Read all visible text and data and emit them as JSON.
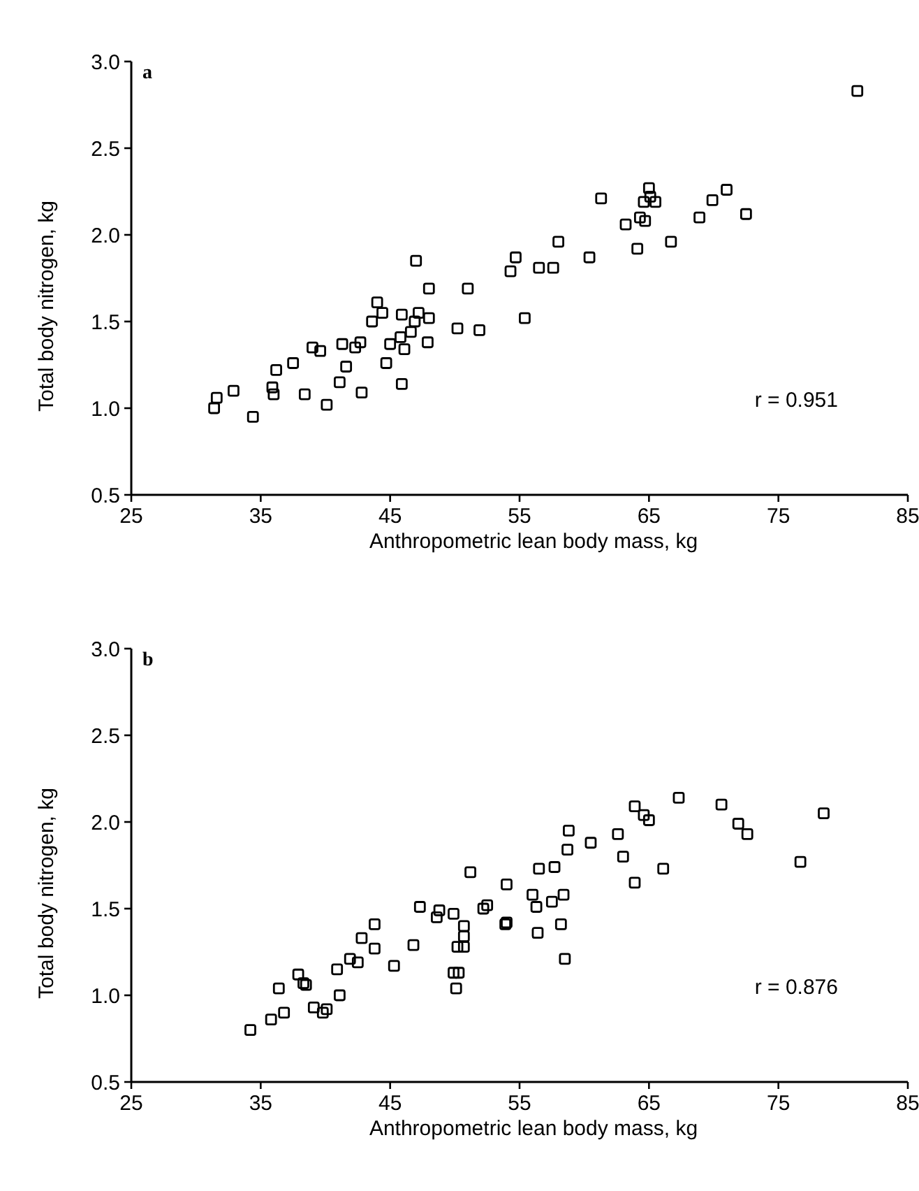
{
  "chart_data": [
    {
      "type": "scatter",
      "title": "a",
      "xlabel": "Anthropometric lean body mass, kg",
      "ylabel": "Total body nitrogen, kg",
      "xlim": [
        25,
        85
      ],
      "xticks": [
        25,
        35,
        45,
        55,
        65,
        75,
        85
      ],
      "ylim": [
        0.5,
        3.0
      ],
      "yticks": [
        {
          "value": 0.5,
          "label": "0.5"
        },
        {
          "value": 1,
          "label": "1.0"
        },
        {
          "value": 1.5,
          "label": "1.5"
        },
        {
          "value": 2,
          "label": "2.0"
        },
        {
          "value": 2.5,
          "label": "2.5"
        },
        {
          "value": 3,
          "label": "3.0"
        }
      ],
      "marker": "square",
      "grid": false,
      "annotations": [
        "r = 0.951"
      ],
      "series": [
        {
          "color": "#000000",
          "x": [
            31.4,
            31.6,
            32.9,
            34.4,
            35.9,
            36.0,
            36.2,
            37.5,
            38.4,
            39.0,
            39.6,
            40.1,
            41.1,
            41.3,
            41.6,
            42.3,
            42.7,
            42.8,
            43.6,
            44.0,
            44.4,
            44.7,
            45.0,
            45.9,
            45.9,
            45.8,
            46.1,
            46.6,
            46.9,
            47.2,
            47.9,
            48.0,
            48.0,
            50.2,
            51.0,
            51.9,
            55.4,
            47.0,
            54.3,
            54.7,
            56.5,
            57.6,
            58.0,
            60.4,
            61.3,
            63.2,
            64.1,
            64.3,
            64.7,
            64.6,
            65.0,
            65.1,
            65.5,
            66.7,
            68.9,
            69.9,
            71.0,
            72.5,
            81.1
          ],
          "values": [
            1.0,
            1.06,
            1.1,
            0.95,
            1.12,
            1.08,
            1.22,
            1.26,
            1.08,
            1.35,
            1.33,
            1.02,
            1.15,
            1.37,
            1.24,
            1.35,
            1.38,
            1.09,
            1.5,
            1.61,
            1.55,
            1.26,
            1.37,
            1.54,
            1.14,
            1.41,
            1.34,
            1.44,
            1.5,
            1.55,
            1.38,
            1.52,
            1.69,
            1.46,
            1.69,
            1.45,
            1.52,
            1.85,
            1.79,
            1.87,
            1.81,
            1.81,
            1.96,
            1.87,
            2.21,
            2.06,
            1.92,
            2.1,
            2.08,
            2.19,
            2.27,
            2.22,
            2.19,
            1.96,
            2.1,
            2.2,
            2.26,
            2.12,
            2.83
          ]
        }
      ]
    },
    {
      "type": "scatter",
      "title": "b",
      "xlabel": "Anthropometric lean body mass, kg",
      "ylabel": "Total body nitrogen, kg",
      "xlim": [
        25,
        85
      ],
      "xticks": [
        25,
        35,
        45,
        55,
        65,
        75,
        85
      ],
      "ylim": [
        0.5,
        3.0
      ],
      "yticks": [
        {
          "value": 0.5,
          "label": "0.5"
        },
        {
          "value": 1,
          "label": "1.0"
        },
        {
          "value": 1.5,
          "label": "1.5"
        },
        {
          "value": 2,
          "label": "2.0"
        },
        {
          "value": 2.5,
          "label": "2.5"
        },
        {
          "value": 3,
          "label": "3.0"
        }
      ],
      "marker": "square",
      "grid": false,
      "annotations": [
        "r = 0.876"
      ],
      "series": [
        {
          "color": "#000000",
          "x": [
            34.2,
            35.8,
            36.4,
            36.8,
            37.9,
            38.3,
            38.5,
            39.1,
            39.8,
            40.1,
            41.1,
            40.9,
            41.9,
            42.5,
            42.8,
            43.8,
            43.8,
            45.3,
            46.8,
            47.3,
            48.6,
            48.8,
            49.9,
            49.9,
            50.3,
            50.1,
            50.2,
            50.7,
            50.7,
            50.7,
            51.2,
            52.2,
            52.5,
            53.9,
            54.0,
            54.0,
            56.0,
            56.3,
            56.4,
            56.5,
            57.5,
            57.7,
            58.2,
            58.4,
            58.5,
            58.7,
            58.8,
            60.5,
            62.6,
            63.0,
            63.9,
            66.1,
            76.7,
            72.6,
            71.9,
            63.9,
            64.6,
            65.0,
            67.3,
            70.6,
            78.5
          ],
          "values": [
            0.8,
            0.86,
            1.04,
            0.9,
            1.12,
            1.07,
            1.06,
            0.93,
            0.9,
            0.92,
            1.0,
            1.15,
            1.21,
            1.19,
            1.33,
            1.27,
            1.41,
            1.17,
            1.29,
            1.51,
            1.45,
            1.49,
            1.47,
            1.13,
            1.13,
            1.04,
            1.28,
            1.28,
            1.34,
            1.4,
            1.71,
            1.5,
            1.52,
            1.41,
            1.42,
            1.64,
            1.58,
            1.51,
            1.36,
            1.73,
            1.54,
            1.74,
            1.41,
            1.58,
            1.21,
            1.84,
            1.95,
            1.88,
            1.93,
            1.8,
            1.65,
            1.73,
            1.77,
            1.93,
            1.99,
            2.09,
            2.04,
            2.01,
            2.14,
            2.1,
            2.05
          ]
        }
      ]
    }
  ]
}
